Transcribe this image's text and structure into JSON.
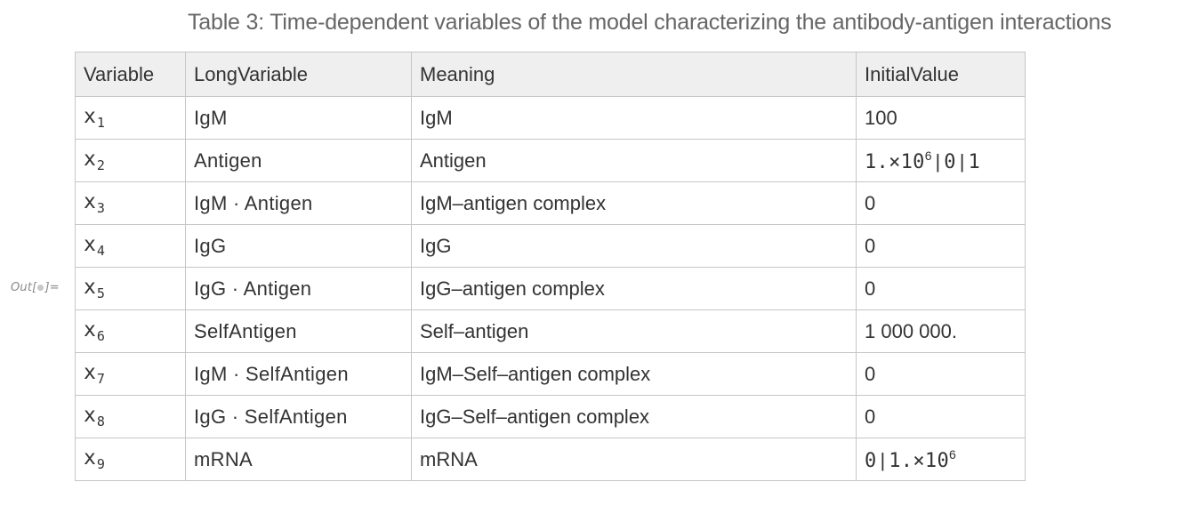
{
  "output_label": {
    "prefix": "Out[",
    "suffix": "]="
  },
  "caption": "Table 3: Time-dependent variables of the model characterizing the antibody-antigen interactions",
  "table": {
    "headers": [
      "Variable",
      "LongVariable",
      "Meaning",
      "InitialValue"
    ],
    "rows": [
      {
        "var": "x",
        "sub": "1",
        "long": "IgM",
        "meaning": "IgM",
        "initial": "100"
      },
      {
        "var": "x",
        "sub": "2",
        "long": "Antigen",
        "meaning": "Antigen",
        "initial_parts": [
          "1.×10",
          "6",
          "|",
          "0",
          "|",
          "1"
        ]
      },
      {
        "var": "x",
        "sub": "3",
        "long": "IgM · Antigen",
        "meaning": "IgM–antigen complex",
        "initial": "0"
      },
      {
        "var": "x",
        "sub": "4",
        "long": "IgG",
        "meaning": "IgG",
        "initial": "0"
      },
      {
        "var": "x",
        "sub": "5",
        "long": "IgG · Antigen",
        "meaning": "IgG–antigen complex",
        "initial": "0"
      },
      {
        "var": "x",
        "sub": "6",
        "long": "SelfAntigen",
        "meaning": "Self–antigen",
        "initial": "1 000 000."
      },
      {
        "var": "x",
        "sub": "7",
        "long": "IgM · SelfAntigen",
        "meaning": "IgM–Self–antigen complex",
        "initial": "0"
      },
      {
        "var": "x",
        "sub": "8",
        "long": "IgG · SelfAntigen",
        "meaning": "IgG–Self–antigen complex",
        "initial": "0"
      },
      {
        "var": "x",
        "sub": "9",
        "long": "mRNA",
        "meaning": "mRNA",
        "initial_parts": [
          "0",
          "|",
          "1.×10",
          "6"
        ]
      }
    ]
  }
}
